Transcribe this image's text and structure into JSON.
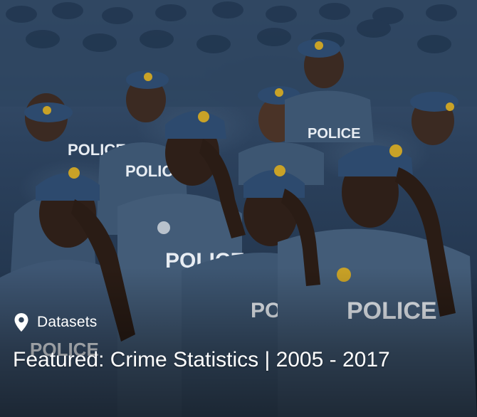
{
  "card": {
    "category_icon": "location-pin-icon",
    "category_label": "Datasets",
    "title": "Featured: Crime Statistics | 2005 - 2017",
    "image": {
      "vest_text": "POLICE"
    }
  },
  "colors": {
    "uniform_blue": "#3e5673",
    "cap_blue": "#2d4a6e",
    "badge_gold": "#c9a227",
    "text": "#ffffff"
  }
}
